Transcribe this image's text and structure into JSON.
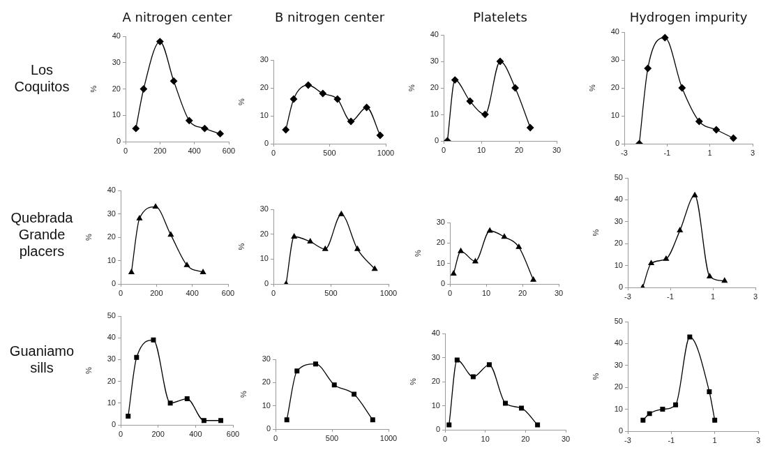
{
  "chart_data": [
    {
      "type": "line",
      "title": "A nitrogen center",
      "annotations": [
        "Los\nCoquitos"
      ],
      "ylabel": "%",
      "x": [
        60,
        105,
        200,
        280,
        370,
        460,
        550
      ],
      "values": [
        5,
        20,
        38,
        23,
        8,
        5,
        3
      ],
      "color": "#000000",
      "marker": "diamond",
      "xlim": [
        0,
        600
      ],
      "xticks": [
        0,
        200,
        400,
        600
      ],
      "ylim": [
        0,
        40
      ],
      "yticks": [
        0,
        10,
        20,
        30,
        40
      ]
    },
    {
      "type": "line",
      "title": "B nitrogen center",
      "ylabel": "%",
      "x": [
        110,
        180,
        310,
        440,
        570,
        690,
        830,
        950
      ],
      "values": [
        5,
        16,
        21,
        18,
        16,
        8,
        13,
        3
      ],
      "color": "#000000",
      "marker": "diamond",
      "xlim": [
        0,
        1000
      ],
      "xticks": [
        0,
        500,
        1000
      ],
      "ylim": [
        0,
        30
      ],
      "yticks": [
        0,
        10,
        20,
        30
      ]
    },
    {
      "type": "line",
      "title": "Platelets",
      "ylabel": "%",
      "x": [
        1,
        3,
        7,
        11,
        15,
        19,
        23
      ],
      "values": [
        0,
        23,
        15,
        10,
        30,
        20,
        5
      ],
      "color": "#000000",
      "marker": "diamond",
      "xlim": [
        0,
        30
      ],
      "xticks": [
        0,
        10,
        20,
        30
      ],
      "ylim": [
        0,
        40
      ],
      "yticks": [
        0,
        10,
        20,
        30,
        40
      ]
    },
    {
      "type": "line",
      "title": "Hydrogen impurity",
      "ylabel": "%",
      "x": [
        -2.3,
        -1.9,
        -1.1,
        -0.3,
        0.5,
        1.3,
        2.1
      ],
      "values": [
        0,
        27,
        38,
        20,
        8,
        5,
        2
      ],
      "color": "#000000",
      "marker": "diamond",
      "xlim": [
        -3,
        3
      ],
      "xticks": [
        -3,
        -1,
        1,
        3
      ],
      "ylim": [
        0,
        40
      ],
      "yticks": [
        0,
        10,
        20,
        30,
        40
      ]
    },
    {
      "type": "line",
      "annotations": [
        "Quebrada\nGrande\nplacers"
      ],
      "ylabel": "%",
      "x": [
        60,
        105,
        195,
        280,
        370,
        460
      ],
      "values": [
        5,
        28,
        33,
        21,
        8,
        5
      ],
      "color": "#000000",
      "marker": "triangle",
      "xlim": [
        0,
        600
      ],
      "xticks": [
        0,
        200,
        400,
        600
      ],
      "ylim": [
        0,
        40
      ],
      "yticks": [
        0,
        10,
        20,
        30,
        40
      ]
    },
    {
      "type": "line",
      "ylabel": "%",
      "x": [
        110,
        180,
        320,
        450,
        590,
        730,
        880
      ],
      "values": [
        0,
        19,
        17,
        14,
        28,
        14,
        6
      ],
      "color": "#000000",
      "marker": "triangle",
      "xlim": [
        0,
        1000
      ],
      "xticks": [
        0,
        500,
        1000
      ],
      "ylim": [
        0,
        30
      ],
      "yticks": [
        0,
        10,
        20,
        30
      ]
    },
    {
      "type": "line",
      "ylabel": "%",
      "x": [
        1,
        3,
        7,
        11,
        15,
        19,
        23
      ],
      "values": [
        5,
        16,
        11,
        26,
        23,
        18,
        2
      ],
      "color": "#000000",
      "marker": "triangle",
      "xlim": [
        0,
        30
      ],
      "xticks": [
        0,
        10,
        20,
        30
      ],
      "ylim": [
        0,
        30
      ],
      "yticks": [
        0,
        10,
        20,
        30
      ]
    },
    {
      "type": "line",
      "ylabel": "%",
      "x": [
        -2.3,
        -1.9,
        -1.2,
        -0.55,
        0.15,
        0.85,
        1.55
      ],
      "values": [
        0,
        11,
        13,
        26,
        42,
        5,
        3
      ],
      "color": "#000000",
      "marker": "triangle",
      "xlim": [
        -3,
        3
      ],
      "xticks": [
        -3,
        -1,
        1,
        3
      ],
      "ylim": [
        0,
        50
      ],
      "yticks": [
        0,
        10,
        20,
        30,
        40,
        50
      ]
    },
    {
      "type": "line",
      "annotations": [
        "Guaniamo\nsills"
      ],
      "ylabel": "%",
      "x": [
        40,
        85,
        175,
        265,
        355,
        445,
        535
      ],
      "values": [
        4,
        31,
        39,
        10,
        12,
        2,
        2
      ],
      "color": "#000000",
      "marker": "square",
      "xlim": [
        0,
        600
      ],
      "xticks": [
        0,
        200,
        400,
        600
      ],
      "ylim": [
        0,
        50
      ],
      "yticks": [
        0,
        10,
        20,
        30,
        40,
        50
      ]
    },
    {
      "type": "line",
      "ylabel": "%",
      "x": [
        100,
        190,
        355,
        520,
        695,
        860
      ],
      "values": [
        4,
        25,
        28,
        19,
        15,
        4
      ],
      "color": "#000000",
      "marker": "square",
      "xlim": [
        0,
        1000
      ],
      "xticks": [
        0,
        500,
        1000
      ],
      "ylim": [
        0,
        30
      ],
      "yticks": [
        0,
        10,
        20,
        30
      ]
    },
    {
      "type": "line",
      "ylabel": "%",
      "x": [
        1,
        3,
        7,
        11,
        15,
        19,
        23
      ],
      "values": [
        2,
        29,
        22,
        27,
        11,
        9,
        2
      ],
      "color": "#000000",
      "marker": "square",
      "xlim": [
        0,
        30
      ],
      "xticks": [
        0,
        10,
        20,
        30
      ],
      "ylim": [
        0,
        40
      ],
      "yticks": [
        0,
        10,
        20,
        30,
        40
      ]
    },
    {
      "type": "line",
      "ylabel": "%",
      "x": [
        -2.3,
        -2.0,
        -1.4,
        -0.8,
        -0.15,
        0.75,
        1.0
      ],
      "values": [
        5,
        8,
        10,
        12,
        43,
        18,
        5
      ],
      "color": "#000000",
      "marker": "square",
      "xlim": [
        -3,
        3
      ],
      "xticks": [
        -3,
        -1,
        1,
        3
      ],
      "ylim": [
        0,
        50
      ],
      "yticks": [
        0,
        10,
        20,
        30,
        40,
        50
      ]
    }
  ]
}
